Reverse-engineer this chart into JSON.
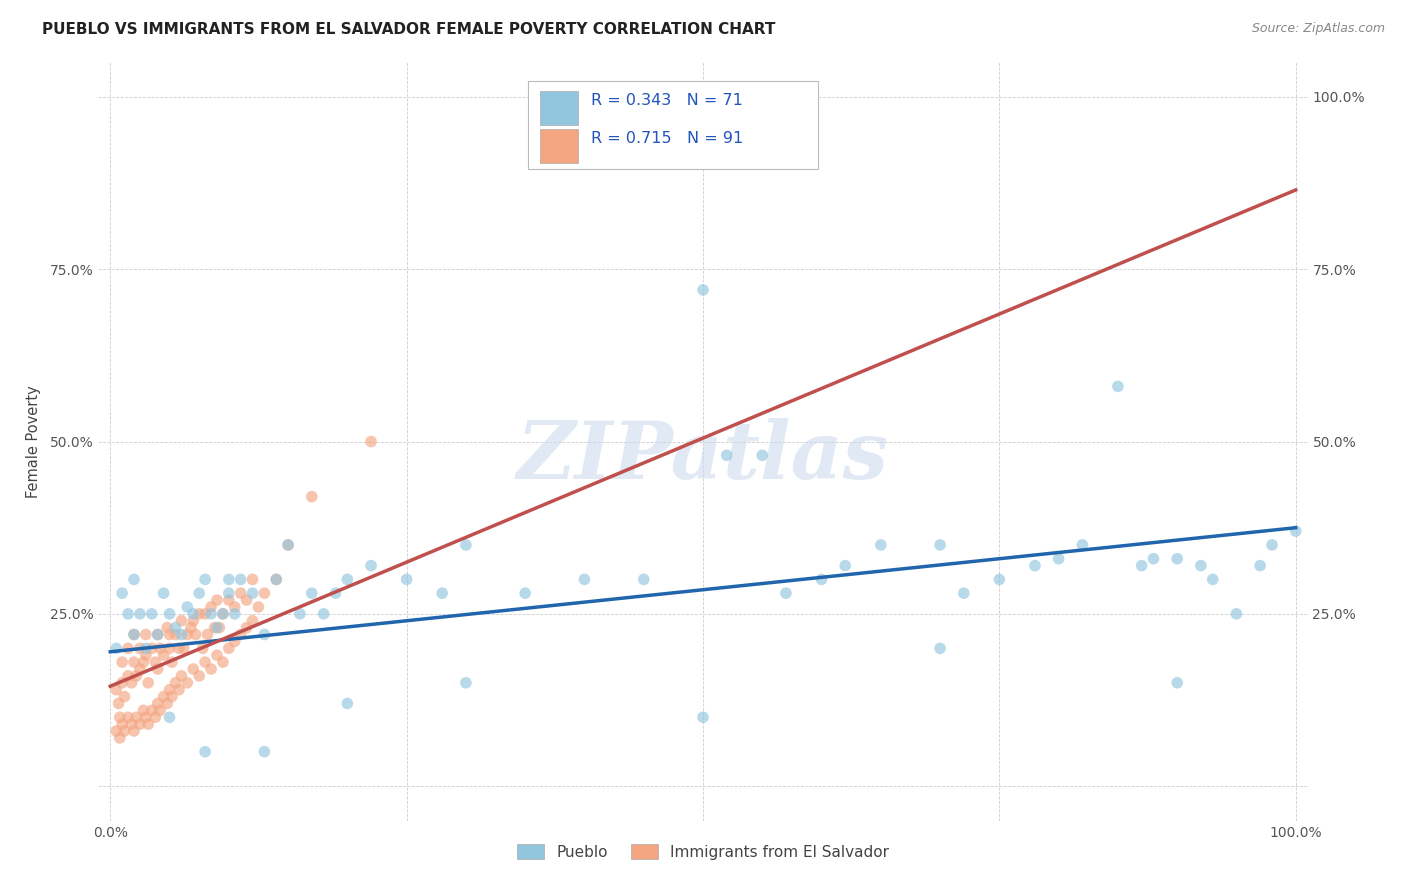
{
  "title": "PUEBLO VS IMMIGRANTS FROM EL SALVADOR FEMALE POVERTY CORRELATION CHART",
  "source": "Source: ZipAtlas.com",
  "ylabel": "Female Poverty",
  "legend_label1": "Pueblo",
  "legend_label2": "Immigrants from El Salvador",
  "r1": 0.343,
  "n1": 71,
  "r2": 0.715,
  "n2": 91,
  "color1": "#92c5de",
  "color2": "#f4a582",
  "color1_scatter": "#92c5de",
  "color2_scatter": "#f4a582",
  "line_color1": "#2166ac",
  "line_color2": "#c0504d",
  "watermark": "ZIPatlas",
  "xlim": [
    -0.01,
    1.01
  ],
  "ylim": [
    -0.05,
    1.05
  ],
  "pueblo_x": [
    0.005,
    0.01,
    0.015,
    0.02,
    0.02,
    0.025,
    0.03,
    0.035,
    0.04,
    0.045,
    0.05,
    0.055,
    0.06,
    0.065,
    0.07,
    0.075,
    0.08,
    0.085,
    0.09,
    0.095,
    0.1,
    0.1,
    0.105,
    0.11,
    0.12,
    0.13,
    0.14,
    0.15,
    0.16,
    0.17,
    0.18,
    0.19,
    0.2,
    0.22,
    0.25,
    0.28,
    0.3,
    0.35,
    0.4,
    0.45,
    0.5,
    0.52,
    0.55,
    0.57,
    0.6,
    0.62,
    0.65,
    0.7,
    0.72,
    0.75,
    0.78,
    0.8,
    0.82,
    0.85,
    0.87,
    0.88,
    0.9,
    0.92,
    0.93,
    0.95,
    0.97,
    0.98,
    1.0,
    0.08,
    0.13,
    0.05,
    0.2,
    0.3,
    0.5,
    0.7,
    0.9
  ],
  "pueblo_y": [
    0.2,
    0.28,
    0.25,
    0.22,
    0.3,
    0.25,
    0.2,
    0.25,
    0.22,
    0.28,
    0.25,
    0.23,
    0.22,
    0.26,
    0.25,
    0.28,
    0.3,
    0.25,
    0.23,
    0.25,
    0.28,
    0.3,
    0.25,
    0.3,
    0.28,
    0.22,
    0.3,
    0.35,
    0.25,
    0.28,
    0.25,
    0.28,
    0.3,
    0.32,
    0.3,
    0.28,
    0.35,
    0.28,
    0.3,
    0.3,
    0.72,
    0.48,
    0.48,
    0.28,
    0.3,
    0.32,
    0.35,
    0.35,
    0.28,
    0.3,
    0.32,
    0.33,
    0.35,
    0.58,
    0.32,
    0.33,
    0.33,
    0.32,
    0.3,
    0.25,
    0.32,
    0.35,
    0.37,
    0.05,
    0.05,
    0.1,
    0.12,
    0.15,
    0.1,
    0.2,
    0.15
  ],
  "salvador_x": [
    0.005,
    0.007,
    0.008,
    0.01,
    0.01,
    0.012,
    0.015,
    0.015,
    0.018,
    0.02,
    0.02,
    0.022,
    0.025,
    0.025,
    0.028,
    0.03,
    0.03,
    0.032,
    0.035,
    0.038,
    0.04,
    0.04,
    0.042,
    0.045,
    0.048,
    0.05,
    0.05,
    0.052,
    0.055,
    0.058,
    0.06,
    0.062,
    0.065,
    0.068,
    0.07,
    0.072,
    0.075,
    0.078,
    0.08,
    0.082,
    0.085,
    0.088,
    0.09,
    0.092,
    0.095,
    0.1,
    0.105,
    0.11,
    0.115,
    0.12,
    0.005,
    0.008,
    0.01,
    0.012,
    0.015,
    0.018,
    0.02,
    0.022,
    0.025,
    0.028,
    0.03,
    0.032,
    0.035,
    0.038,
    0.04,
    0.042,
    0.045,
    0.048,
    0.05,
    0.052,
    0.055,
    0.058,
    0.06,
    0.065,
    0.07,
    0.075,
    0.08,
    0.085,
    0.09,
    0.095,
    0.1,
    0.105,
    0.11,
    0.115,
    0.12,
    0.125,
    0.13,
    0.14,
    0.15,
    0.17,
    0.22
  ],
  "salvador_y": [
    0.14,
    0.12,
    0.1,
    0.15,
    0.18,
    0.13,
    0.16,
    0.2,
    0.15,
    0.18,
    0.22,
    0.16,
    0.2,
    0.17,
    0.18,
    0.22,
    0.19,
    0.15,
    0.2,
    0.18,
    0.22,
    0.17,
    0.2,
    0.19,
    0.23,
    0.2,
    0.22,
    0.18,
    0.22,
    0.2,
    0.24,
    0.2,
    0.22,
    0.23,
    0.24,
    0.22,
    0.25,
    0.2,
    0.25,
    0.22,
    0.26,
    0.23,
    0.27,
    0.23,
    0.25,
    0.27,
    0.26,
    0.28,
    0.27,
    0.3,
    0.08,
    0.07,
    0.09,
    0.08,
    0.1,
    0.09,
    0.08,
    0.1,
    0.09,
    0.11,
    0.1,
    0.09,
    0.11,
    0.1,
    0.12,
    0.11,
    0.13,
    0.12,
    0.14,
    0.13,
    0.15,
    0.14,
    0.16,
    0.15,
    0.17,
    0.16,
    0.18,
    0.17,
    0.19,
    0.18,
    0.2,
    0.21,
    0.22,
    0.23,
    0.24,
    0.26,
    0.28,
    0.3,
    0.35,
    0.42,
    0.5
  ],
  "blue_line_x": [
    0.0,
    1.0
  ],
  "blue_line_y": [
    0.195,
    0.375
  ],
  "pink_line_x": [
    0.0,
    1.0
  ],
  "pink_line_y": [
    0.145,
    0.865
  ]
}
